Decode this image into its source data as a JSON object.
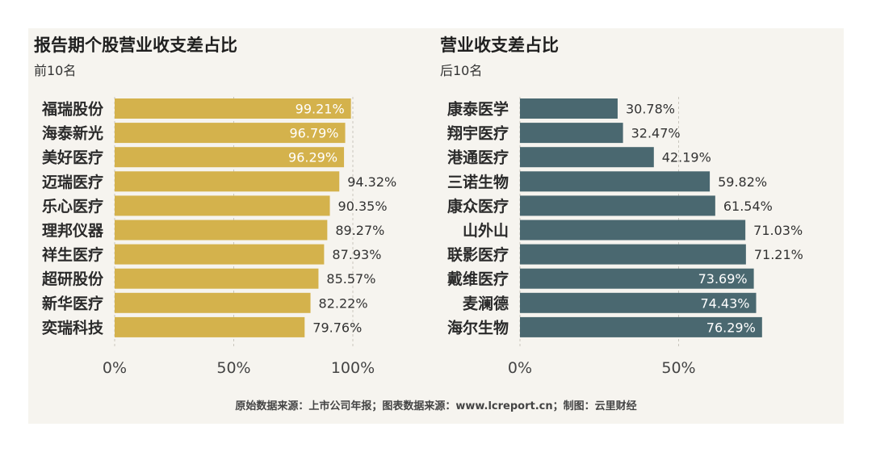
{
  "footer": "原始数据来源：上市公司年报；图表数据来源：www.lcreport.cn；制图：云里财经",
  "colors": {
    "left_bar": "#d4b24c",
    "right_bar": "#4a6870",
    "panel_bg": "#f6f4ef",
    "label_inside": "#ffffff",
    "label_outside": "#333333"
  },
  "chart_data": [
    {
      "type": "bar",
      "orientation": "horizontal",
      "title": "报告期个股营业收支差占比",
      "subtitle": "前10名",
      "categories": [
        "福瑞股份",
        "海泰新光",
        "美好医疗",
        "迈瑞医疗",
        "乐心医疗",
        "理邦仪器",
        "祥生医疗",
        "超研股份",
        "新华医疗",
        "奕瑞科技"
      ],
      "values": [
        99.21,
        96.79,
        96.29,
        94.32,
        90.35,
        89.27,
        87.93,
        85.57,
        82.22,
        79.76
      ],
      "value_labels": [
        "99.21%",
        "96.79%",
        "96.29%",
        "94.32%",
        "90.35%",
        "89.27%",
        "87.93%",
        "85.57%",
        "82.22%",
        "79.76%"
      ],
      "xlim": [
        0,
        100
      ],
      "xticks": [
        0,
        50,
        100
      ],
      "xtick_labels": [
        "0%",
        "50%",
        "100%"
      ]
    },
    {
      "type": "bar",
      "orientation": "horizontal",
      "title": "营业收支差占比",
      "subtitle": "后10名",
      "categories": [
        "康泰医学",
        "翔宇医疗",
        "港通医疗",
        "三诺生物",
        "康众医疗",
        "山外山",
        "联影医疗",
        "戴维医疗",
        "麦澜德",
        "海尔生物"
      ],
      "values": [
        30.78,
        32.47,
        42.19,
        59.82,
        61.54,
        71.03,
        71.21,
        73.69,
        74.43,
        76.29
      ],
      "value_labels": [
        "30.78%",
        "32.47%",
        "42.19%",
        "59.82%",
        "61.54%",
        "71.03%",
        "71.21%",
        "73.69%",
        "74.43%",
        "76.29%"
      ],
      "xlim": [
        0,
        100
      ],
      "xticks": [
        0,
        50
      ],
      "xtick_labels": [
        "0%",
        "50%"
      ]
    }
  ]
}
